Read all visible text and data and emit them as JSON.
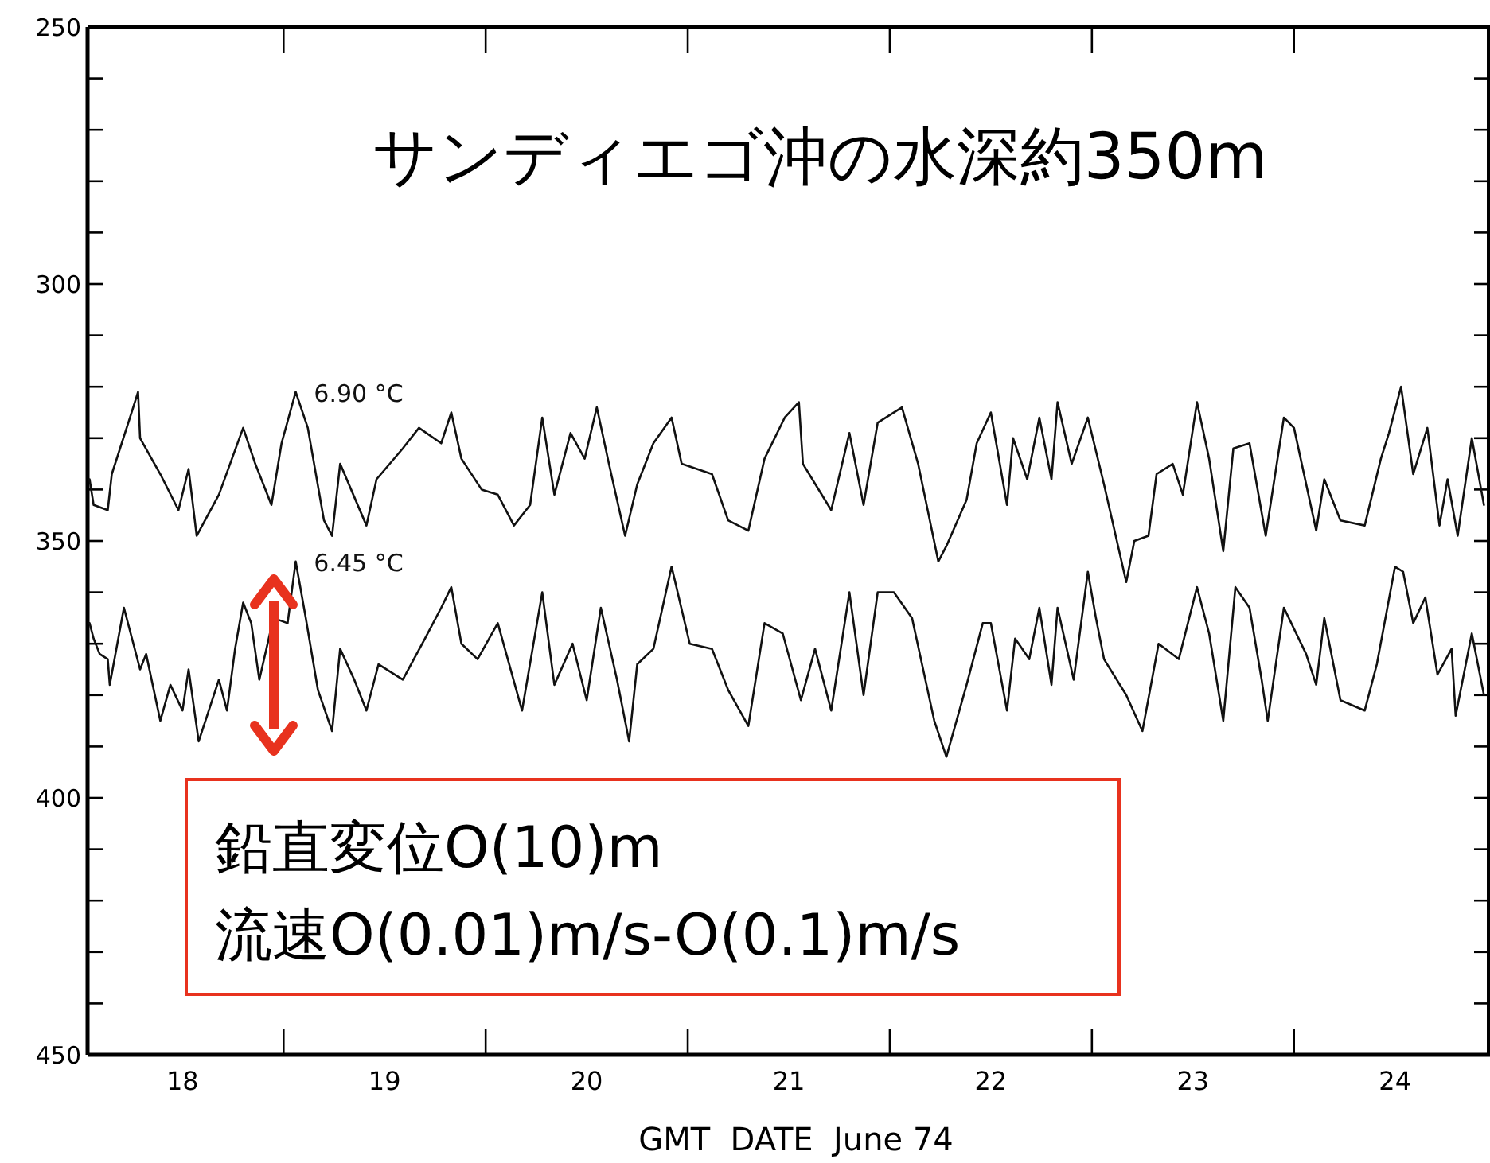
{
  "chart_data": {
    "type": "line",
    "title": "サンディエゴ沖の水深約350m",
    "xlabel": "GMT  DATE  June 74",
    "annotations": [
      "鉛直変位O(10)m",
      "流速O(0.01)m/s-O(0.1)m/s"
    ],
    "xlim": [
      18.03,
      24.97
    ],
    "ylim": [
      450,
      250
    ],
    "xticks": [
      {
        "value": 18.5,
        "label": "18"
      },
      {
        "value": 19,
        "label": null
      },
      {
        "value": 19.5,
        "label": "19"
      },
      {
        "value": 20,
        "label": null
      },
      {
        "value": 20.5,
        "label": "20"
      },
      {
        "value": 21,
        "label": null
      },
      {
        "value": 21.5,
        "label": "21"
      },
      {
        "value": 22,
        "label": null
      },
      {
        "value": 22.5,
        "label": "22"
      },
      {
        "value": 23,
        "label": null
      },
      {
        "value": 23.5,
        "label": "23"
      },
      {
        "value": 24,
        "label": null
      },
      {
        "value": 24.5,
        "label": "24"
      }
    ],
    "yticks": [
      250,
      {
        "value": 260,
        "label": null
      },
      {
        "value": 270,
        "label": null
      },
      {
        "value": 280,
        "label": null
      },
      {
        "value": 290,
        "label": null
      },
      300,
      {
        "value": 310,
        "label": null
      },
      {
        "value": 320,
        "label": null
      },
      {
        "value": 330,
        "label": null
      },
      {
        "value": 340,
        "label": null
      },
      350,
      {
        "value": 360,
        "label": null
      },
      {
        "value": 370,
        "label": null
      },
      {
        "value": 380,
        "label": null
      },
      {
        "value": 390,
        "label": null
      },
      400,
      {
        "value": 410,
        "label": null
      },
      {
        "value": 420,
        "label": null
      },
      {
        "value": 430,
        "label": null
      },
      {
        "value": 440,
        "label": null
      },
      450
    ],
    "line_style": "solid",
    "marker": "none",
    "series": [
      {
        "name": "6.90 °C",
        "color": "#111111",
        "x": [
          18.04,
          18.06,
          18.13,
          18.15,
          18.24,
          18.28,
          18.29,
          18.39,
          18.48,
          18.53,
          18.57,
          18.68,
          18.8,
          18.86,
          18.94,
          18.99,
          19.06,
          19.12,
          19.2,
          19.24,
          19.28,
          19.41,
          19.46,
          19.59,
          19.67,
          19.78,
          19.83,
          19.88,
          19.98,
          20.06,
          20.14,
          20.22,
          20.28,
          20.34,
          20.42,
          20.49,
          20.55,
          20.61,
          20.69,
          20.75,
          20.83,
          20.92,
          20.97,
          21.12,
          21.2,
          21.3,
          21.38,
          21.48,
          21.55,
          21.57,
          21.71,
          21.8,
          21.87,
          21.94,
          22.06,
          22.14,
          22.24,
          22.28,
          22.38,
          22.43,
          22.5,
          22.58,
          22.61,
          22.68,
          22.74,
          22.8,
          22.83,
          22.9,
          22.98,
          23.06,
          23.17,
          23.21,
          23.28,
          23.32,
          23.4,
          23.45,
          23.52,
          23.58,
          23.65,
          23.7,
          23.78,
          23.86,
          23.95,
          24.0,
          24.11,
          24.15,
          24.23,
          24.35,
          24.43,
          24.47,
          24.53,
          24.59,
          24.66,
          24.72,
          24.76,
          24.81,
          24.88,
          24.94
        ],
        "values": [
          338,
          343,
          344,
          337,
          326,
          321,
          330,
          337,
          344,
          336,
          349,
          341,
          328,
          335,
          343,
          331,
          321,
          328,
          346,
          349,
          335,
          347,
          338,
          332,
          328,
          331,
          325,
          334,
          340,
          341,
          347,
          343,
          326,
          341,
          329,
          334,
          324,
          335,
          349,
          339,
          331,
          326,
          335,
          337,
          346,
          348,
          334,
          326,
          323,
          335,
          344,
          329,
          343,
          327,
          324,
          335,
          354,
          351,
          342,
          331,
          325,
          343,
          330,
          338,
          326,
          338,
          323,
          335,
          326,
          339,
          358,
          350,
          349,
          337,
          335,
          341,
          323,
          334,
          352,
          332,
          331,
          349,
          326,
          328,
          348,
          338,
          346,
          347,
          334,
          329,
          320,
          337,
          328,
          347,
          338,
          349,
          330,
          343
        ]
      },
      {
        "name": "6.45 °C",
        "color": "#111111",
        "x": [
          18.04,
          18.06,
          18.09,
          18.13,
          18.14,
          18.21,
          18.25,
          18.29,
          18.32,
          18.39,
          18.44,
          18.5,
          18.53,
          18.58,
          18.68,
          18.72,
          18.76,
          18.8,
          18.84,
          18.88,
          18.95,
          19.02,
          19.06,
          19.11,
          19.17,
          19.24,
          19.28,
          19.35,
          19.41,
          19.47,
          19.59,
          19.7,
          19.78,
          19.83,
          19.88,
          19.96,
          20.06,
          20.18,
          20.28,
          20.34,
          20.43,
          20.5,
          20.57,
          20.65,
          20.71,
          20.75,
          20.83,
          20.92,
          21.01,
          21.12,
          21.2,
          21.3,
          21.38,
          21.47,
          21.56,
          21.63,
          21.71,
          21.8,
          21.87,
          21.94,
          22.02,
          22.11,
          22.22,
          22.28,
          22.38,
          22.46,
          22.5,
          22.58,
          22.62,
          22.69,
          22.74,
          22.8,
          22.83,
          22.91,
          22.98,
          23.02,
          23.06,
          23.17,
          23.25,
          23.33,
          23.43,
          23.52,
          23.58,
          23.65,
          23.71,
          23.78,
          23.84,
          23.87,
          23.95,
          24.06,
          24.11,
          24.15,
          24.23,
          24.35,
          24.41,
          24.5,
          24.54,
          24.59,
          24.65,
          24.71,
          24.78,
          24.8,
          24.88,
          24.94
        ],
        "values": [
          366,
          369,
          372,
          373,
          378,
          363,
          369,
          375,
          372,
          385,
          378,
          383,
          375,
          389,
          377,
          383,
          371,
          362,
          366,
          377,
          365,
          366,
          354,
          365,
          379,
          387,
          371,
          377,
          383,
          374,
          377,
          369,
          363,
          359,
          370,
          373,
          366,
          383,
          360,
          378,
          370,
          381,
          363,
          377,
          389,
          374,
          371,
          355,
          370,
          371,
          379,
          386,
          366,
          368,
          381,
          371,
          383,
          360,
          380,
          360,
          360,
          365,
          385,
          392,
          378,
          366,
          366,
          383,
          369,
          373,
          363,
          378,
          363,
          377,
          356,
          365,
          373,
          380,
          387,
          370,
          373,
          359,
          368,
          385,
          359,
          363,
          377,
          385,
          363,
          372,
          378,
          365,
          381,
          383,
          374,
          355,
          356,
          366,
          361,
          376,
          371,
          384,
          368,
          380
        ]
      }
    ]
  }
}
